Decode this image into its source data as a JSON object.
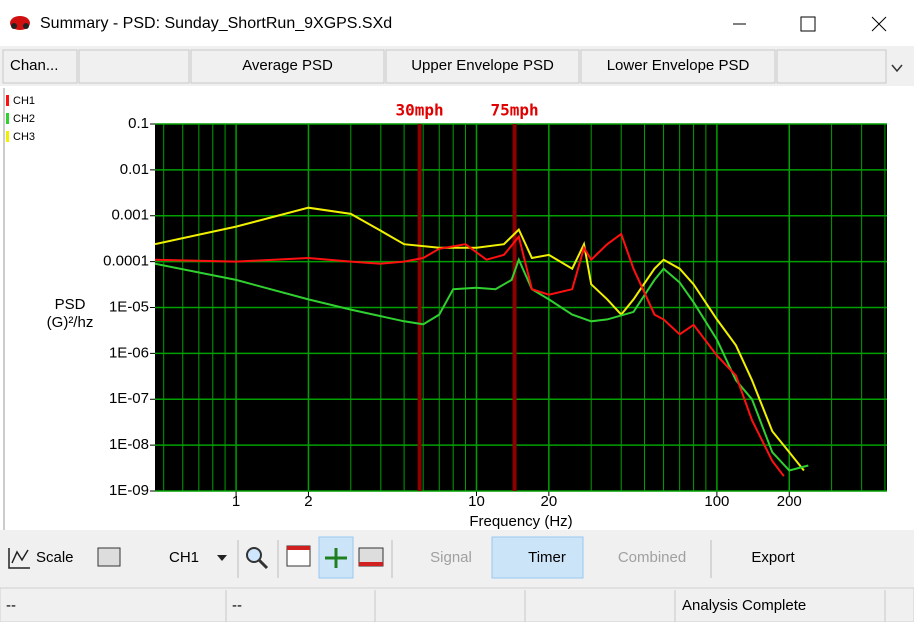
{
  "window": {
    "title": "Summary - PSD: Sunday_ShortRun_9XGPS.SXd"
  },
  "toolbar": {
    "tabs": [
      "Chan...",
      "Average PSD",
      "Upper Envelope PSD",
      "Lower Envelope PSD"
    ]
  },
  "chart_data": {
    "type": "line",
    "xscale": "log",
    "yscale": "log",
    "x_label": "Frequency (Hz)",
    "y_label": [
      "PSD",
      "(G)²/hz"
    ],
    "xlim": [
      0.46,
      510
    ],
    "ylim": [
      1e-09,
      0.1
    ],
    "xticks": [
      1,
      2,
      10,
      20,
      100,
      200
    ],
    "x_minor_ticks": [
      0.5,
      0.6,
      0.7,
      0.8,
      0.9,
      3,
      4,
      5,
      6,
      7,
      8,
      9,
      30,
      40,
      50,
      60,
      70,
      80,
      90,
      300,
      400,
      500
    ],
    "yticks": [
      0.1,
      0.01,
      0.001,
      0.0001,
      {
        "value": 1e-05,
        "label": "1E-05"
      },
      {
        "value": 1e-06,
        "label": "1E-06"
      },
      {
        "value": 1e-07,
        "label": "1E-07"
      },
      {
        "value": 1e-08,
        "label": "1E-08"
      },
      {
        "value": 1e-09,
        "label": "1E-09"
      }
    ],
    "grid": true,
    "grid_color": "#00a000",
    "background": "#000000",
    "markers": [
      {
        "label": "30mph",
        "x": 5.8
      },
      {
        "label": "75mph",
        "x": 14.4
      }
    ],
    "marker_color": "#8b0000",
    "marker_label_color": "#e00000",
    "series": [
      {
        "name": "CH1",
        "color": "#ff1010",
        "x": [
          0.46,
          1,
          2,
          3,
          4,
          5,
          6,
          7,
          9,
          11,
          13,
          15,
          17,
          20,
          25,
          28,
          30,
          35,
          40,
          45,
          55,
          60,
          70,
          80,
          100,
          120,
          140,
          170,
          190
        ],
        "values": [
          0.00011,
          0.0001,
          0.00012,
          0.0001,
          9e-05,
          0.0001,
          0.00012,
          0.00019,
          0.00024,
          0.00011,
          0.00014,
          0.00035,
          2.5e-05,
          1.9e-05,
          2.5e-05,
          0.0002,
          0.00011,
          0.00024,
          0.0004,
          7e-05,
          7e-06,
          5.5e-06,
          2.6e-06,
          4.2e-06,
          9e-07,
          3.3e-07,
          3.5e-08,
          4.5e-09,
          2.1e-09
        ]
      },
      {
        "name": "CH2",
        "color": "#30d030",
        "x": [
          0.46,
          1,
          2,
          3,
          5,
          6,
          7,
          8,
          10,
          12,
          14,
          15,
          17,
          20,
          25,
          30,
          35,
          45,
          55,
          60,
          70,
          80,
          100,
          120,
          140,
          170,
          200,
          240
        ],
        "values": [
          9e-05,
          4e-05,
          1.5e-05,
          9e-06,
          5e-06,
          4.3e-06,
          7e-06,
          2.5e-05,
          2.7e-05,
          2.5e-05,
          4e-05,
          0.00011,
          2.5e-05,
          1.5e-05,
          7e-06,
          5e-06,
          5.5e-06,
          8e-06,
          4e-05,
          7e-05,
          3.5e-05,
          1.3e-05,
          2e-06,
          2.6e-07,
          1e-07,
          7e-09,
          2.8e-09,
          3.6e-09
        ]
      },
      {
        "name": "CH3",
        "color": "#f0f000",
        "x": [
          0.46,
          1,
          2,
          3,
          4,
          5,
          7,
          10,
          13,
          15,
          17,
          20,
          25,
          28,
          30,
          35,
          40,
          45,
          55,
          60,
          70,
          80,
          100,
          120,
          140,
          170,
          200,
          230
        ],
        "values": [
          0.00024,
          0.00058,
          0.0015,
          0.0011,
          0.00047,
          0.00024,
          0.0002,
          0.0002,
          0.00024,
          0.0005,
          0.00012,
          0.00014,
          7e-05,
          0.00024,
          3.2e-05,
          1.5e-05,
          7e-06,
          1.5e-05,
          7e-05,
          0.00011,
          7e-05,
          3.2e-05,
          5.5e-06,
          1.5e-06,
          2.6e-07,
          2e-08,
          7e-09,
          2.8e-09
        ]
      }
    ]
  },
  "bottom_toolbar": {
    "scale": "Scale",
    "channel": "CH1",
    "buttons": [
      "Signal",
      "Timer",
      "Combined",
      "Export"
    ]
  },
  "status_bar": [
    "--",
    "--",
    "Analysis Complete"
  ]
}
